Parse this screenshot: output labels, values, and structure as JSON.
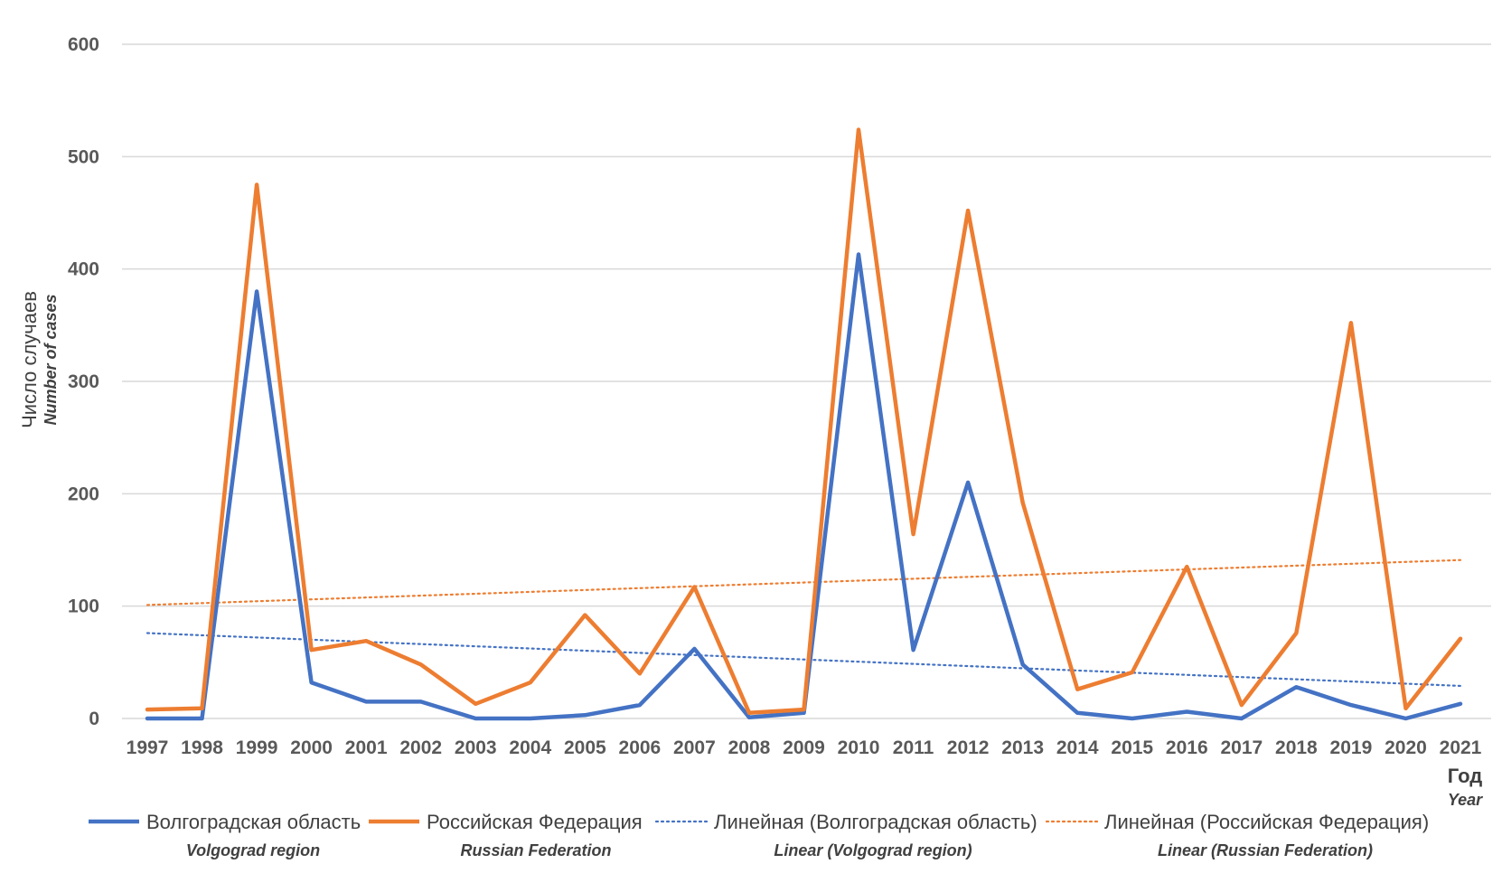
{
  "chart_data": {
    "type": "line",
    "title": "",
    "ylabel": "Число случаев",
    "ylabel_sub": "Number of cases",
    "xlabel": "Год",
    "xlabel_sub": "Year",
    "ylim": [
      0,
      600
    ],
    "yticks": [
      0,
      100,
      200,
      300,
      400,
      500,
      600
    ],
    "grid": true,
    "legend_position": "bottom",
    "categories": [
      "1997",
      "1998",
      "1999",
      "2000",
      "2001",
      "2002",
      "2003",
      "2004",
      "2005",
      "2006",
      "2007",
      "2008",
      "2009",
      "2010",
      "2011",
      "2012",
      "2013",
      "2014",
      "2015",
      "2016",
      "2017",
      "2018",
      "2019",
      "2020",
      "2021"
    ],
    "series": [
      {
        "name": "Волгоградская область",
        "name_sub": "Volgograd region",
        "color": "#4472c4",
        "style": "solid",
        "values": [
          0,
          0,
          380,
          32,
          15,
          15,
          0,
          0,
          3,
          12,
          62,
          1,
          5,
          413,
          61,
          210,
          48,
          5,
          0,
          6,
          0,
          28,
          12,
          0,
          13
        ]
      },
      {
        "name": "Российская Федерация",
        "name_sub": "Russian Federation",
        "color": "#ed7d31",
        "style": "solid",
        "values": [
          8,
          9,
          475,
          61,
          69,
          48,
          13,
          32,
          92,
          40,
          117,
          5,
          8,
          524,
          164,
          452,
          192,
          26,
          41,
          135,
          12,
          76,
          352,
          9,
          71
        ]
      }
    ],
    "trendlines": [
      {
        "name": "Линейная (Волгоградская область)",
        "name_sub": "Linear (Volgograd region)",
        "color": "#4472c4",
        "style": "dotted",
        "start": 76,
        "end": 29
      },
      {
        "name": "Линейная (Российская Федерация)",
        "name_sub": "Linear (Russian Federation)",
        "color": "#ed7d31",
        "style": "dotted",
        "start": 101,
        "end": 141
      }
    ]
  }
}
